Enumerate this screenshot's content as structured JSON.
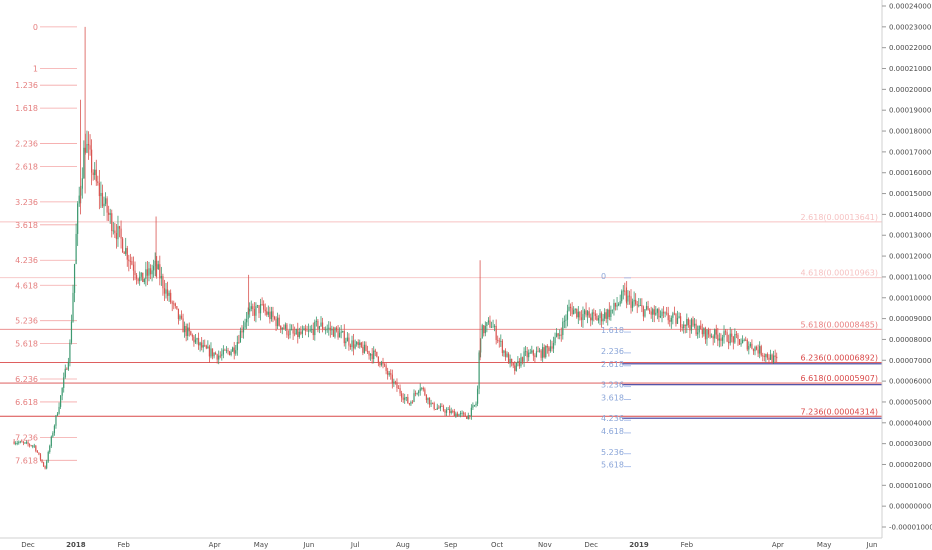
{
  "chart_data": {
    "type": "candlestick",
    "y_axis": {
      "position": "right",
      "ylim": [
        -1e-05,
        0.00024
      ],
      "ticks": [
        "0.00024000",
        "0.00023000",
        "0.00022000",
        "0.00021000",
        "0.00020000",
        "0.00019000",
        "0.00018000",
        "0.00017000",
        "0.00016000",
        "0.00015000",
        "0.00014000",
        "0.00013000",
        "0.00012000",
        "0.00011000",
        "0.00010000",
        "0.00009000",
        "0.00008000",
        "0.00007000",
        "0.00006000",
        "0.00005000",
        "0.00004000",
        "0.00003000",
        "0.00002000",
        "0.00001000",
        "0.00000000",
        "-0.00001000"
      ]
    },
    "x_axis": {
      "ticks": [
        {
          "label": "Dec",
          "date": "2017-12-01"
        },
        {
          "label": "2018",
          "date": "2018-01-01",
          "bold": true
        },
        {
          "label": "Feb",
          "date": "2018-02-01"
        },
        {
          "label": "Apr",
          "date": "2018-04-01"
        },
        {
          "label": "May",
          "date": "2018-05-01"
        },
        {
          "label": "Jun",
          "date": "2018-06-01"
        },
        {
          "label": "Jul",
          "date": "2018-07-01"
        },
        {
          "label": "Aug",
          "date": "2018-08-01"
        },
        {
          "label": "Sep",
          "date": "2018-09-01"
        },
        {
          "label": "Oct",
          "date": "2018-10-01"
        },
        {
          "label": "Nov",
          "date": "2018-11-01"
        },
        {
          "label": "Dec",
          "date": "2018-12-01"
        },
        {
          "label": "2019",
          "date": "2019-01-01",
          "bold": true
        },
        {
          "label": "Feb",
          "date": "2019-02-01"
        },
        {
          "label": "Apr",
          "date": "2019-04-01"
        },
        {
          "label": "May",
          "date": "2019-05-01"
        },
        {
          "label": "Jun",
          "date": "2019-06-01"
        }
      ]
    },
    "price_path": [
      {
        "date": "2017-11-22",
        "close": 3.1e-05
      },
      {
        "date": "2017-12-05",
        "close": 2.9e-05
      },
      {
        "date": "2017-12-12",
        "close": 1.8e-05
      },
      {
        "date": "2017-12-16",
        "close": 3.2e-05
      },
      {
        "date": "2017-12-22",
        "close": 5.2e-05
      },
      {
        "date": "2017-12-28",
        "close": 7.5e-05
      },
      {
        "date": "2018-01-02",
        "close": 0.00014
      },
      {
        "date": "2018-01-07",
        "close": 0.000175
      },
      {
        "date": "2018-01-14",
        "close": 0.000155
      },
      {
        "date": "2018-01-22",
        "close": 0.00014
      },
      {
        "date": "2018-02-01",
        "close": 0.000125
      },
      {
        "date": "2018-02-12",
        "close": 0.000108
      },
      {
        "date": "2018-02-22",
        "close": 0.000115
      },
      {
        "date": "2018-03-01",
        "close": 0.000102
      },
      {
        "date": "2018-03-12",
        "close": 8.5e-05
      },
      {
        "date": "2018-03-25",
        "close": 7.5e-05
      },
      {
        "date": "2018-04-05",
        "close": 7.2e-05
      },
      {
        "date": "2018-04-14",
        "close": 7.6e-05
      },
      {
        "date": "2018-04-22",
        "close": 9.2e-05
      },
      {
        "date": "2018-05-01",
        "close": 9.5e-05
      },
      {
        "date": "2018-05-12",
        "close": 8.8e-05
      },
      {
        "date": "2018-05-22",
        "close": 8.2e-05
      },
      {
        "date": "2018-06-01",
        "close": 8.3e-05
      },
      {
        "date": "2018-06-07",
        "close": 8.7e-05
      },
      {
        "date": "2018-06-20",
        "close": 8.3e-05
      },
      {
        "date": "2018-07-01",
        "close": 7.7e-05
      },
      {
        "date": "2018-07-15",
        "close": 7.2e-05
      },
      {
        "date": "2018-07-25",
        "close": 6e-05
      },
      {
        "date": "2018-08-05",
        "close": 4.9e-05
      },
      {
        "date": "2018-08-12",
        "close": 5.8e-05
      },
      {
        "date": "2018-08-20",
        "close": 4.8e-05
      },
      {
        "date": "2018-09-01",
        "close": 4.5e-05
      },
      {
        "date": "2018-09-12",
        "close": 4.3e-05
      },
      {
        "date": "2018-09-18",
        "close": 5e-05
      },
      {
        "date": "2018-09-20",
        "close": 8.3e-05
      },
      {
        "date": "2018-09-27",
        "close": 8.8e-05
      },
      {
        "date": "2018-10-05",
        "close": 7.5e-05
      },
      {
        "date": "2018-10-12",
        "close": 6.5e-05
      },
      {
        "date": "2018-10-18",
        "close": 7.2e-05
      },
      {
        "date": "2018-11-01",
        "close": 7.4e-05
      },
      {
        "date": "2018-11-10",
        "close": 8.2e-05
      },
      {
        "date": "2018-11-17",
        "close": 9.5e-05
      },
      {
        "date": "2018-11-25",
        "close": 9.2e-05
      },
      {
        "date": "2018-12-05",
        "close": 9e-05
      },
      {
        "date": "2018-12-15",
        "close": 9.4e-05
      },
      {
        "date": "2018-12-22",
        "close": 0.000101
      },
      {
        "date": "2019-01-01",
        "close": 9.5e-05
      },
      {
        "date": "2019-01-15",
        "close": 9.1e-05
      },
      {
        "date": "2019-02-01",
        "close": 8.8e-05
      },
      {
        "date": "2019-02-12",
        "close": 8.3e-05
      },
      {
        "date": "2019-02-28",
        "close": 8.1e-05
      },
      {
        "date": "2019-03-15",
        "close": 7.7e-05
      },
      {
        "date": "2019-04-01",
        "close": 6.9e-05
      }
    ],
    "fib_extension_left": {
      "color": "#f4a6a6",
      "levels": [
        {
          "label": "0",
          "value": 0.00023
        },
        {
          "label": "1",
          "value": 0.00021
        },
        {
          "label": "1.236",
          "value": 0.000202
        },
        {
          "label": "1.618",
          "value": 0.000191
        },
        {
          "label": "2.236",
          "value": 0.000174
        },
        {
          "label": "2.618",
          "value": 0.000163
        },
        {
          "label": "3.236",
          "value": 0.000146
        },
        {
          "label": "3.618",
          "value": 0.000135
        },
        {
          "label": "4.236",
          "value": 0.000118
        },
        {
          "label": "4.618",
          "value": 0.000106
        },
        {
          "label": "5.236",
          "value": 8.9e-05
        },
        {
          "label": "5.618",
          "value": 7.8e-05
        },
        {
          "label": "6.236",
          "value": 6.1e-05
        },
        {
          "label": "6.618",
          "value": 5e-05
        },
        {
          "label": "7.236",
          "value": 3.3e-05
        },
        {
          "label": "7.618",
          "value": 2.2e-05
        }
      ]
    },
    "fib_extension_right": {
      "color": "#9ab3e6",
      "levels": [
        {
          "label": "0",
          "value": 0.0001105
        },
        {
          "label": "1.618",
          "value": 8.45e-05
        },
        {
          "label": "2.236",
          "value": 7.45e-05
        },
        {
          "label": "2.618",
          "value": 6.83e-05
        },
        {
          "label": "3.236",
          "value": 5.83e-05
        },
        {
          "label": "3.618",
          "value": 5.21e-05
        },
        {
          "label": "4.236",
          "value": 4.22e-05
        },
        {
          "label": "4.618",
          "value": 3.61e-05
        },
        {
          "label": "5.236",
          "value": 2.61e-05
        },
        {
          "label": "5.618",
          "value": 1.99e-05
        }
      ]
    },
    "horizontal_levels": [
      {
        "label": "2.618(0.00013641)",
        "value": 0.00013641,
        "color": "#f6c2c2"
      },
      {
        "label": "4.618(0.00010963)",
        "value": 0.00010963,
        "color": "#f6c2c2"
      },
      {
        "label": "5.618(0.00008485)",
        "value": 8.485e-05,
        "color": "#e88080"
      },
      {
        "label": "6.236(0.00006892)",
        "value": 6.892e-05,
        "color": "#d94848"
      },
      {
        "label": "6.618(0.00005907)",
        "value": 5.907e-05,
        "color": "#d94848"
      },
      {
        "label": "7.236(0.00004314)",
        "value": 4.314e-05,
        "color": "#d94848"
      }
    ],
    "blue_level_lines": [
      {
        "value": 6.83e-05,
        "color": "#3c3c9c"
      },
      {
        "value": 5.83e-05,
        "color": "#3c3c9c"
      },
      {
        "value": 4.22e-05,
        "color": "#3c3c9c"
      }
    ],
    "colors": {
      "up": "#3d9970",
      "down": "#d9534f"
    }
  }
}
